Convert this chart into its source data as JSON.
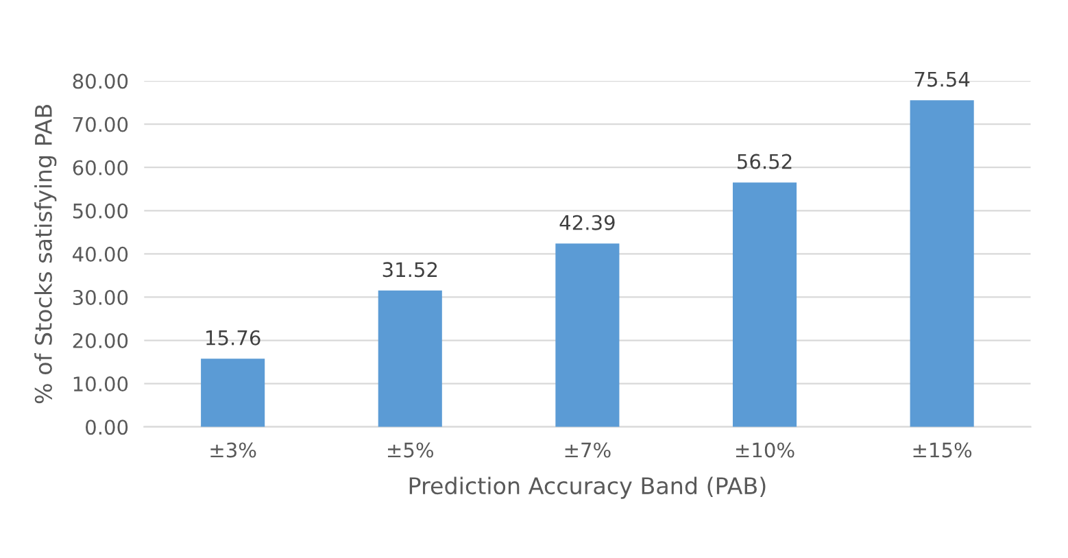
{
  "chart_data": {
    "type": "bar",
    "xlabel": "Prediction Accuracy Band (PAB)",
    "ylabel": "% of Stocks satisfying PAB",
    "categories": [
      "±3%",
      "±5%",
      "±7%",
      "±10%",
      "±15%"
    ],
    "values": [
      15.76,
      31.52,
      42.39,
      56.52,
      75.54
    ],
    "color": "#5b9bd5",
    "ylim": [
      0,
      80
    ],
    "yticks": [
      {
        "value": 0,
        "label": "0.00"
      },
      {
        "value": 10,
        "label": "10.00"
      },
      {
        "value": 20,
        "label": "20.00"
      },
      {
        "value": 30,
        "label": "30.00"
      },
      {
        "value": 40,
        "label": "40.00"
      },
      {
        "value": 50,
        "label": "50.00"
      },
      {
        "value": 60,
        "label": "60.00"
      },
      {
        "value": 70,
        "label": "70.00"
      },
      {
        "value": 80,
        "label": "80.00"
      }
    ],
    "grid": "y",
    "data_labels": true
  }
}
